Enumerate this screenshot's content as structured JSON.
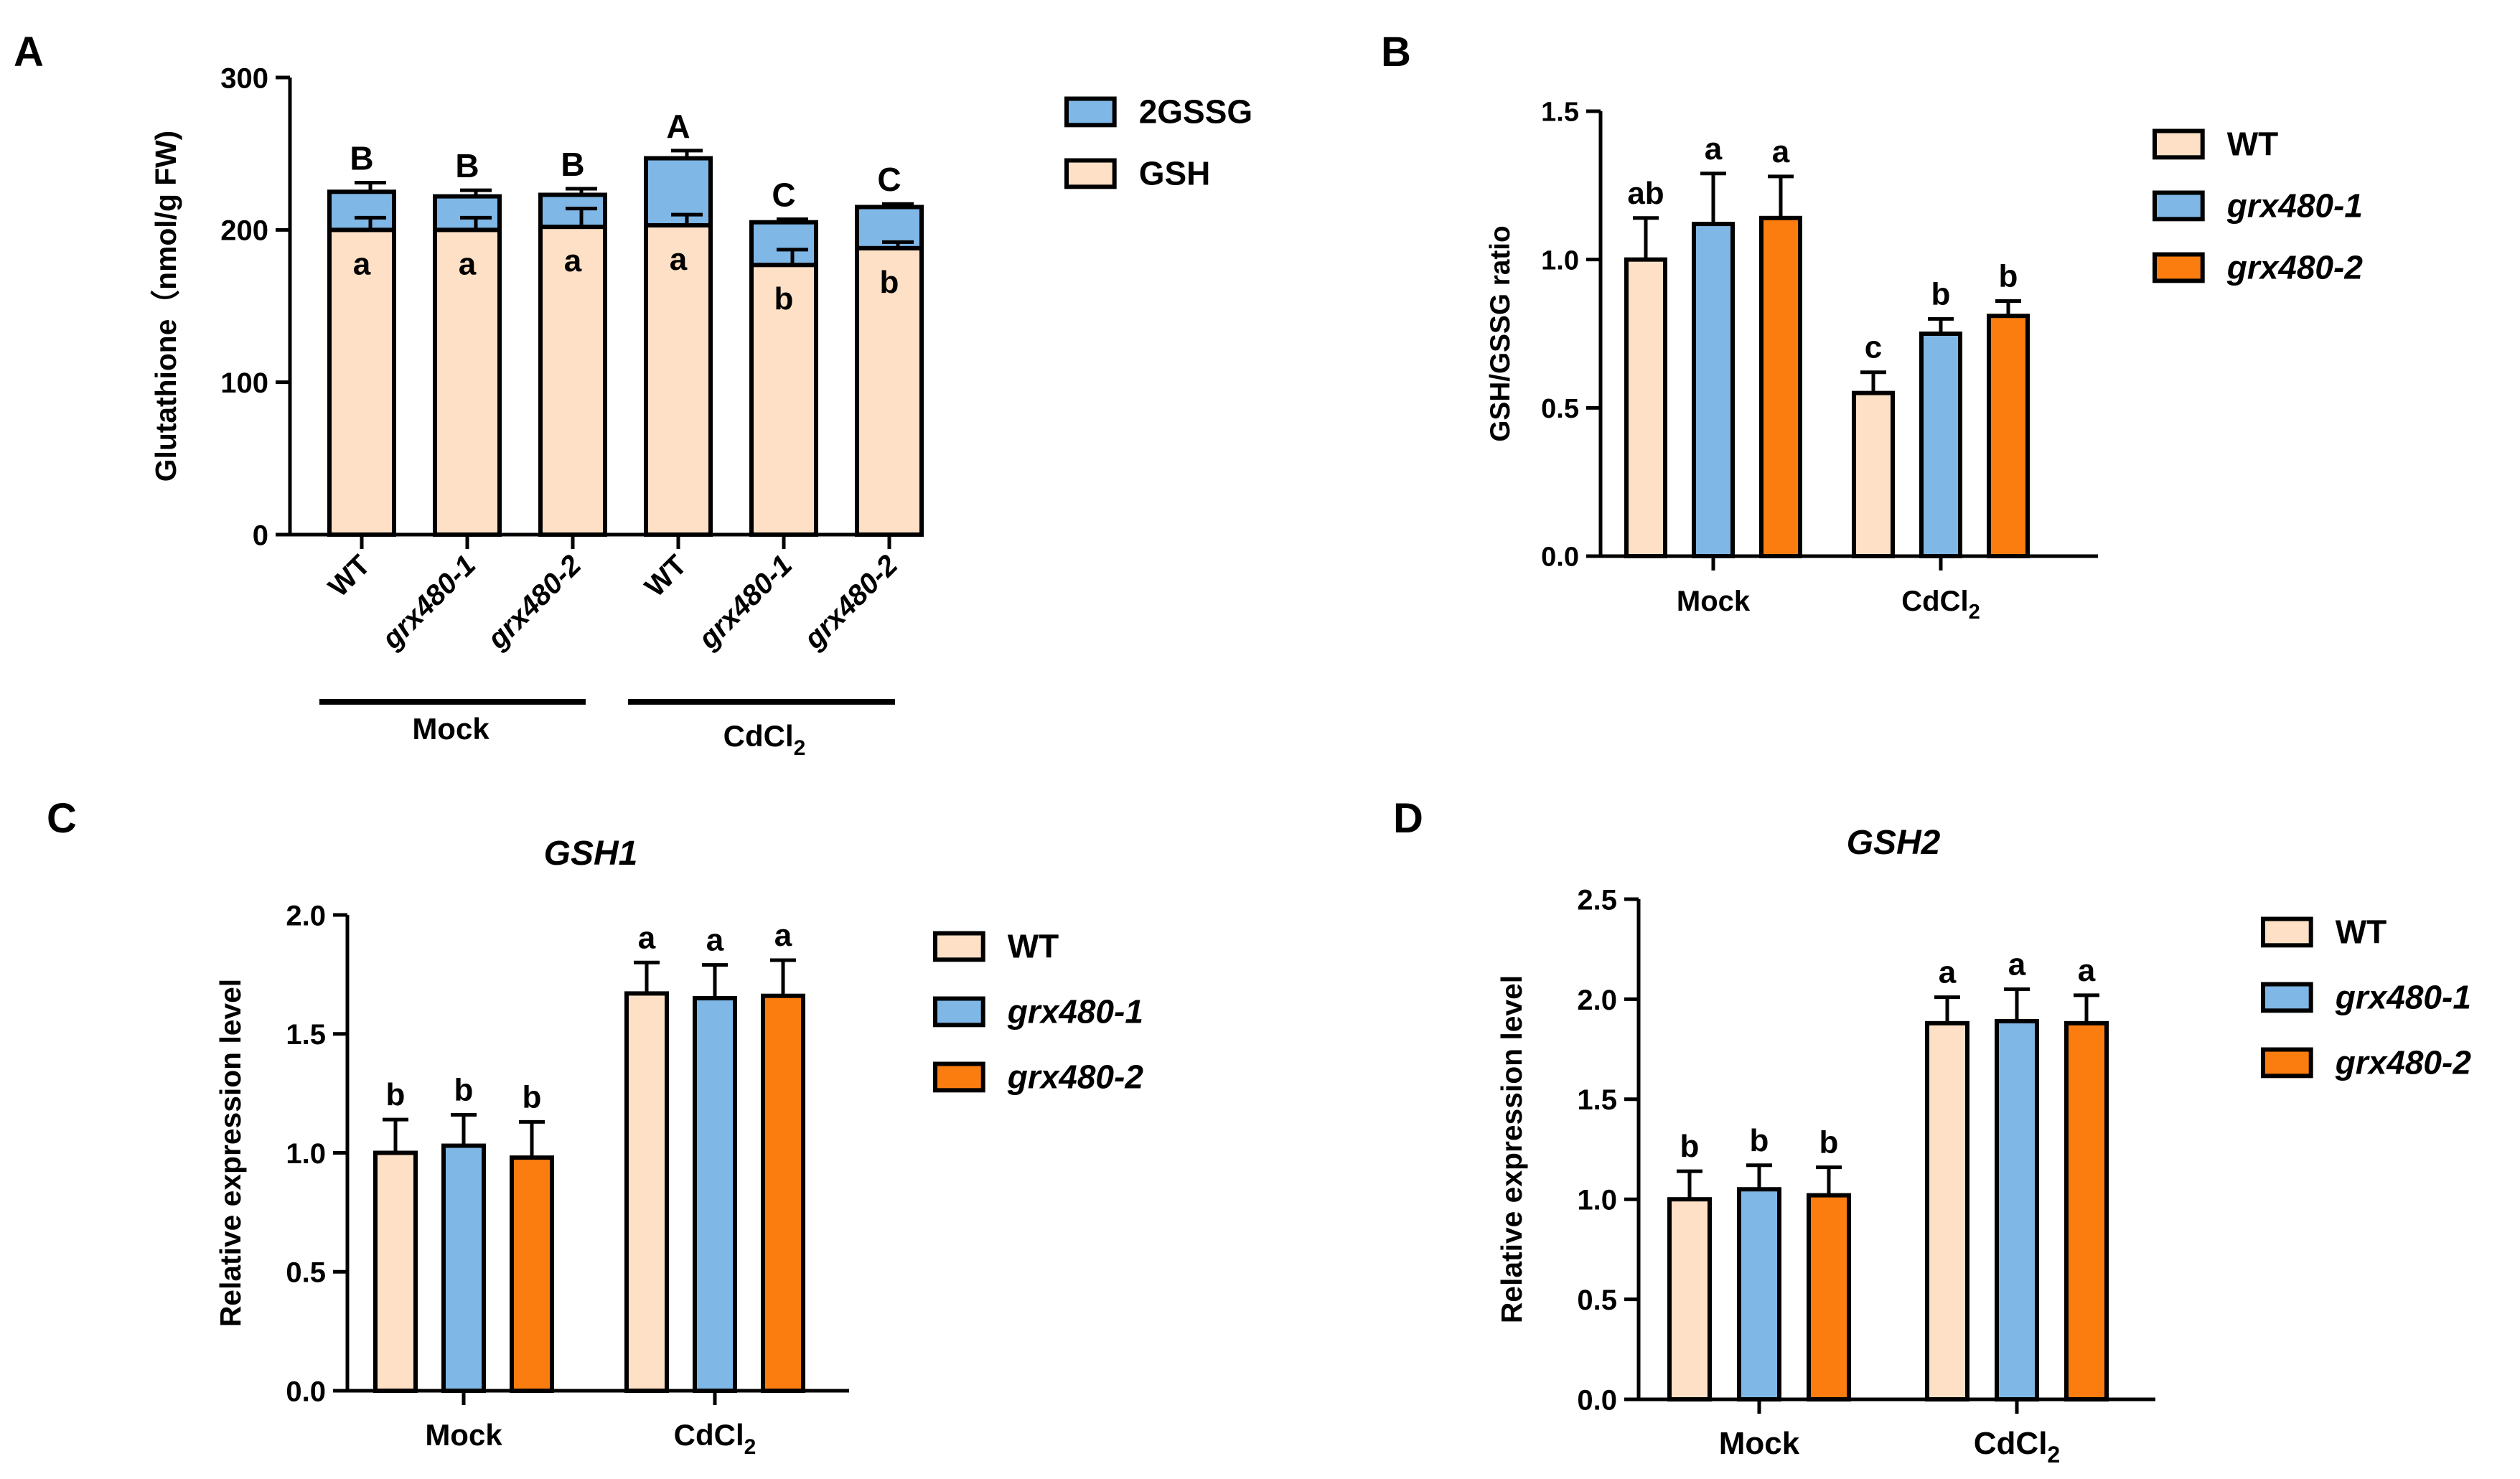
{
  "colors": {
    "wt": "#fde0c5",
    "grx1": "#7fb7e6",
    "grx2": "#fb7d10",
    "gssg": "#7fb7e6",
    "gsh": "#fde0c5"
  },
  "chart_data": [
    {
      "panel": "A",
      "type": "bar",
      "stacked": true,
      "ylabel": "Glutathione（nmol/g FW)",
      "ylim": [
        0,
        300
      ],
      "yticks": [
        "0",
        "100",
        "200",
        "300"
      ],
      "categories": [
        "WT",
        "grx480-1",
        "grx480-2",
        "WT",
        "grx480-1",
        "grx480-2"
      ],
      "groups": [
        {
          "label": "Mock",
          "span": [
            0,
            2
          ]
        },
        {
          "label": "CdCl",
          "sub": "2",
          "span": [
            3,
            5
          ]
        }
      ],
      "legend": [
        "2GSSG",
        "GSH"
      ],
      "series": [
        {
          "name": "GSH",
          "values": [
            200,
            200,
            202,
            203,
            177,
            188
          ],
          "errors": [
            8,
            8,
            12,
            7,
            10,
            4
          ],
          "labels": [
            "a",
            "a",
            "a",
            "a",
            "b",
            "b"
          ]
        },
        {
          "name": "2GSSG",
          "values": [
            25,
            22,
            21,
            44,
            28,
            27
          ],
          "errors": [
            6,
            4,
            4,
            5,
            2,
            2
          ],
          "labels": [
            "B",
            "B",
            "B",
            "A",
            "C",
            "C"
          ]
        }
      ]
    },
    {
      "panel": "B",
      "type": "bar",
      "ylabel": "GSH/GSSG ratio",
      "ylim": [
        0,
        1.5
      ],
      "yticks": [
        "0.0",
        "0.5",
        "1.0",
        "1.5"
      ],
      "categories": [
        {
          "label": "Mock"
        },
        {
          "label": "CdCl",
          "sub": "2"
        }
      ],
      "legend": [
        "WT",
        "grx480-1",
        "grx480-2"
      ],
      "series": [
        {
          "name": "WT",
          "values": [
            1.0,
            0.55
          ],
          "errors": [
            0.14,
            0.07
          ],
          "labels": [
            "ab",
            "c"
          ]
        },
        {
          "name": "grx480-1",
          "values": [
            1.12,
            0.75
          ],
          "errors": [
            0.17,
            0.05
          ],
          "labels": [
            "a",
            "b"
          ]
        },
        {
          "name": "grx480-2",
          "values": [
            1.14,
            0.81
          ],
          "errors": [
            0.14,
            0.05
          ],
          "labels": [
            "a",
            "b"
          ]
        }
      ]
    },
    {
      "panel": "C",
      "type": "bar",
      "title": "GSH1",
      "ylabel": "Relative expression level",
      "ylim": [
        0,
        2.0
      ],
      "yticks": [
        "0.0",
        "0.5",
        "1.0",
        "1.5",
        "2.0"
      ],
      "categories": [
        {
          "label": "Mock"
        },
        {
          "label": "CdCl",
          "sub": "2"
        }
      ],
      "legend": [
        "WT",
        "grx480-1",
        "grx480-2"
      ],
      "series": [
        {
          "name": "WT",
          "values": [
            1.0,
            1.67
          ],
          "errors": [
            0.14,
            0.13
          ],
          "labels": [
            "b",
            "a"
          ]
        },
        {
          "name": "grx480-1",
          "values": [
            1.03,
            1.65
          ],
          "errors": [
            0.13,
            0.14
          ],
          "labels": [
            "b",
            "a"
          ]
        },
        {
          "name": "grx480-2",
          "values": [
            0.98,
            1.66
          ],
          "errors": [
            0.15,
            0.15
          ],
          "labels": [
            "b",
            "a"
          ]
        }
      ]
    },
    {
      "panel": "D",
      "type": "bar",
      "title": "GSH2",
      "ylabel": "Relative expression level",
      "ylim": [
        0,
        2.5
      ],
      "yticks": [
        "0.0",
        "0.5",
        "1.0",
        "1.5",
        "2.0",
        "2.5"
      ],
      "categories": [
        {
          "label": "Mock"
        },
        {
          "label": "CdCl",
          "sub": "2"
        }
      ],
      "legend": [
        "WT",
        "grx480-1",
        "grx480-2"
      ],
      "series": [
        {
          "name": "WT",
          "values": [
            1.0,
            1.88
          ],
          "errors": [
            0.14,
            0.13
          ],
          "labels": [
            "b",
            "a"
          ]
        },
        {
          "name": "grx480-1",
          "values": [
            1.05,
            1.89
          ],
          "errors": [
            0.12,
            0.16
          ],
          "labels": [
            "b",
            "a"
          ]
        },
        {
          "name": "grx480-2",
          "values": [
            1.02,
            1.88
          ],
          "errors": [
            0.14,
            0.14
          ],
          "labels": [
            "b",
            "a"
          ]
        }
      ]
    }
  ]
}
